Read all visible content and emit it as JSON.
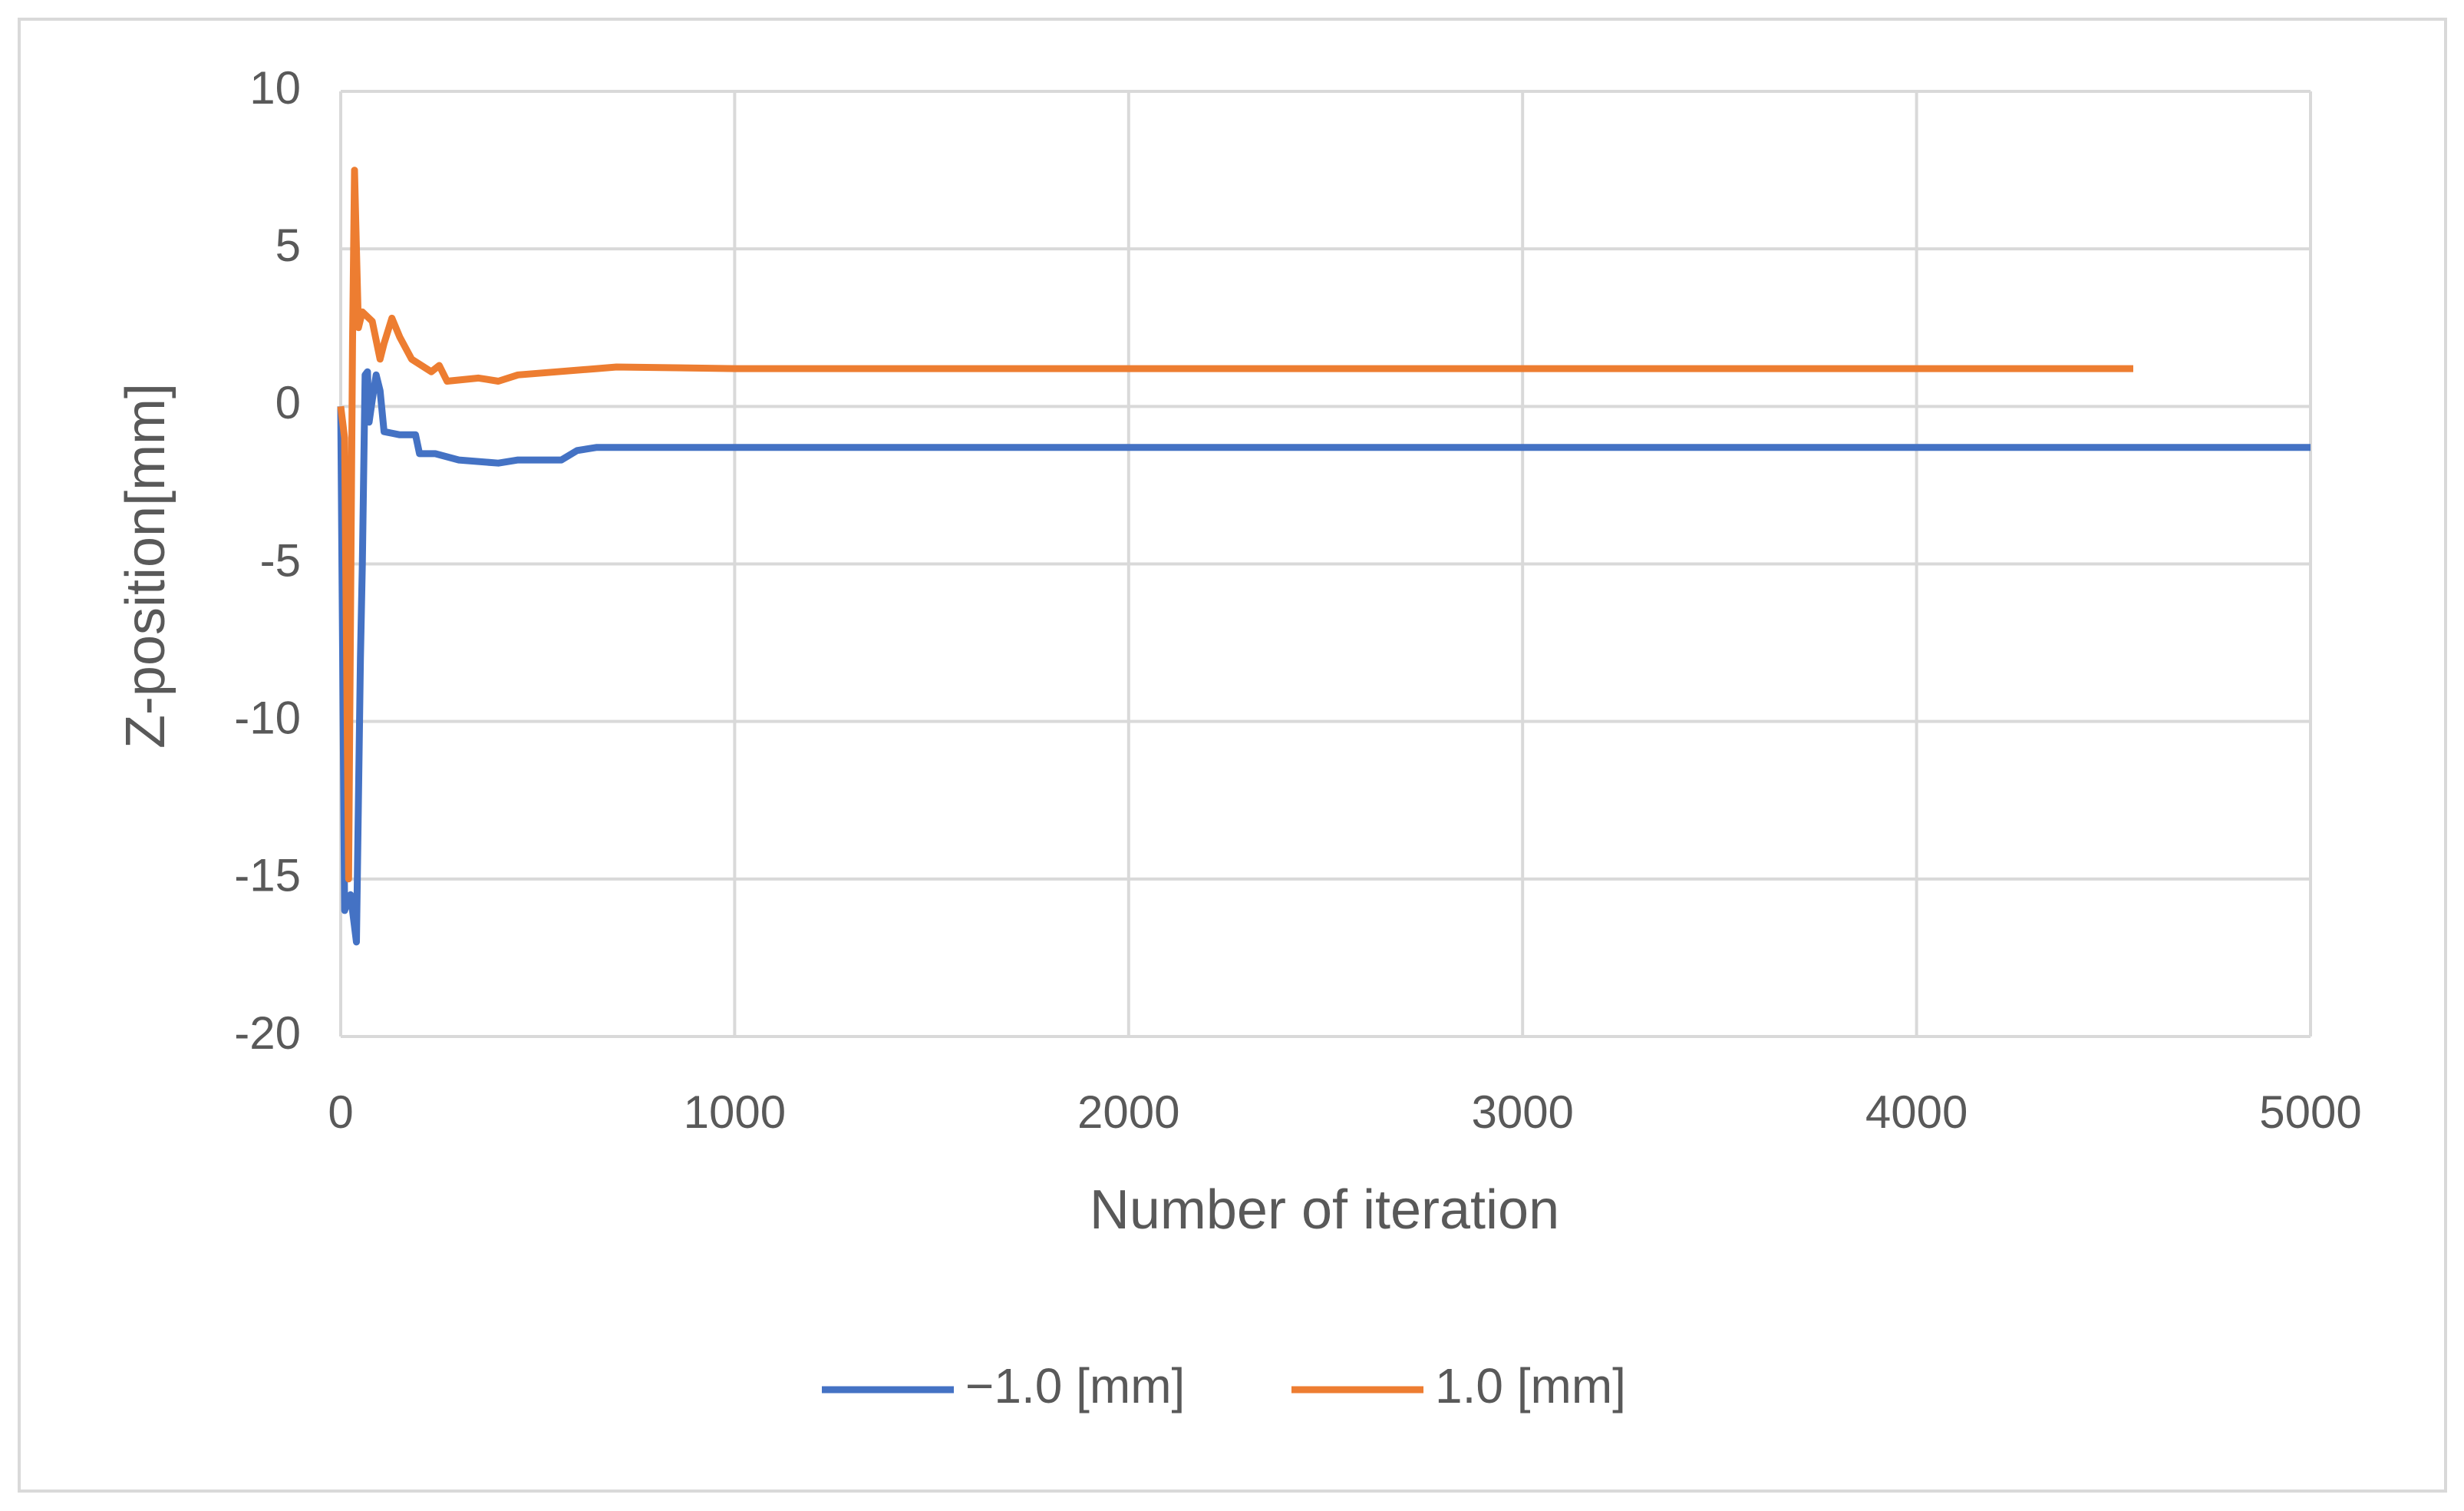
{
  "chart_data": {
    "type": "line",
    "x_label": "Number of iteration",
    "y_label": "Z-position[mm]",
    "xlim": [
      0,
      5000
    ],
    "xticks": [
      0,
      1000,
      2000,
      3000,
      4000,
      5000
    ],
    "ylim": [
      -20,
      10
    ],
    "yticks": [
      -20,
      -15,
      -10,
      -5,
      0,
      5,
      10
    ],
    "grid": true,
    "legend": "bottom",
    "series": [
      {
        "name": "−1.0 [mm]",
        "color": "#4472c4",
        "x": [
          0,
          10,
          25,
          40,
          50,
          55,
          62,
          68,
          72,
          80,
          90,
          100,
          110,
          150,
          190,
          200,
          240,
          300,
          400,
          450,
          560,
          600,
          650,
          1000,
          2000,
          3000,
          4000,
          5000
        ],
        "values": [
          0,
          -16,
          -15.5,
          -17,
          -8,
          -5,
          1,
          1.1,
          -0.5,
          0.2,
          1,
          0.5,
          -0.8,
          -0.9,
          -0.9,
          -1.5,
          -1.5,
          -1.7,
          -1.8,
          -1.7,
          -1.7,
          -1.4,
          -1.3,
          -1.3,
          -1.3,
          -1.3,
          -1.3,
          -1.3
        ]
      },
      {
        "name": "1.0 [mm]",
        "color": "#ed7d31",
        "x": [
          0,
          10,
          20,
          30,
          35,
          40,
          45,
          55,
          80,
          100,
          110,
          130,
          150,
          180,
          230,
          250,
          270,
          350,
          400,
          450,
          550,
          650,
          700,
          1000,
          2000,
          3000,
          4000,
          4550
        ],
        "values": [
          0,
          -1,
          -15,
          2,
          7.5,
          5,
          2.5,
          3,
          2.7,
          1.5,
          2,
          2.8,
          2.2,
          1.5,
          1.1,
          1.3,
          0.8,
          0.9,
          0.8,
          1,
          1.1,
          1.2,
          1.25,
          1.2,
          1.2,
          1.2,
          1.2,
          1.2
        ]
      }
    ]
  }
}
